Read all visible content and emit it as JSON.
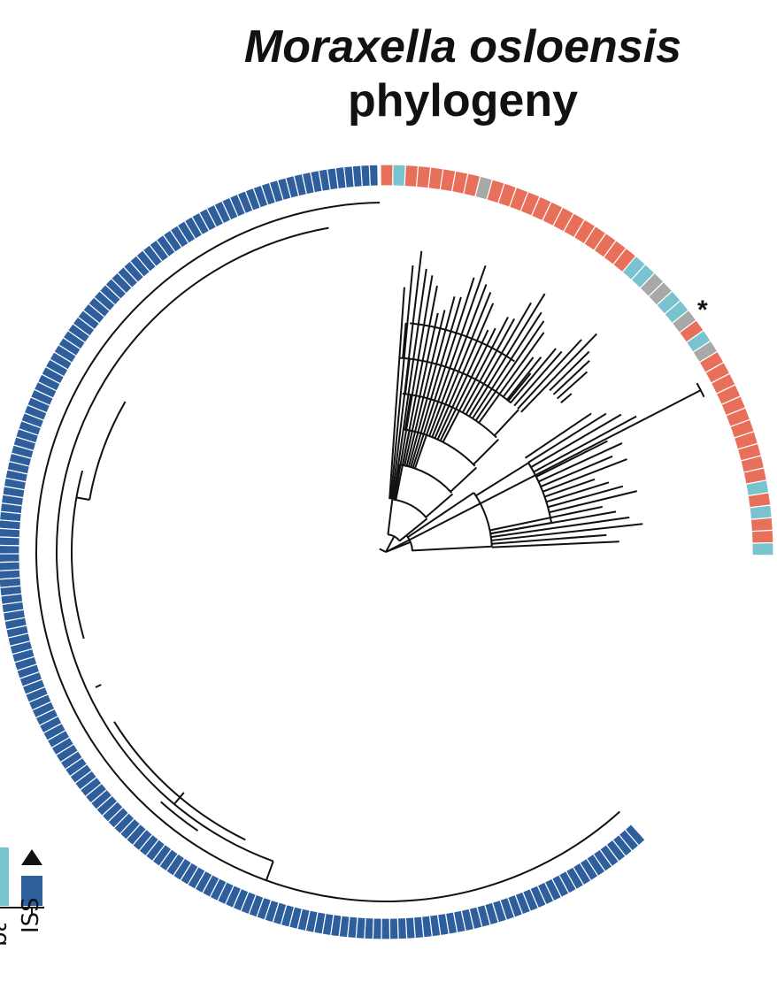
{
  "title": {
    "line1": "Moraxella osloensis",
    "line2": "phylogeny"
  },
  "annotation": {
    "asterisk": "*"
  },
  "legend": {
    "items": [
      {
        "label": "",
        "color": "#79c3cf",
        "marker": ""
      },
      {
        "label": "ISS",
        "color": "#2e5e9c",
        "marker": "triangle"
      }
    ],
    "clipped_label_fragment": "ban"
  },
  "colors": {
    "iss": "#2e5e9c",
    "red": "#e8705a",
    "gray": "#a8a8a8",
    "teal": "#79c3cf",
    "branch": "#111111"
  },
  "ring": {
    "outer_ring_sequence_clockwise_from_top": "Dark blue continuous from ~90deg to ~-48deg (ISS); from top going clockwise: one red, one teal, then mostly red with scattered gray and teal tiles down to ~0deg"
  }
}
